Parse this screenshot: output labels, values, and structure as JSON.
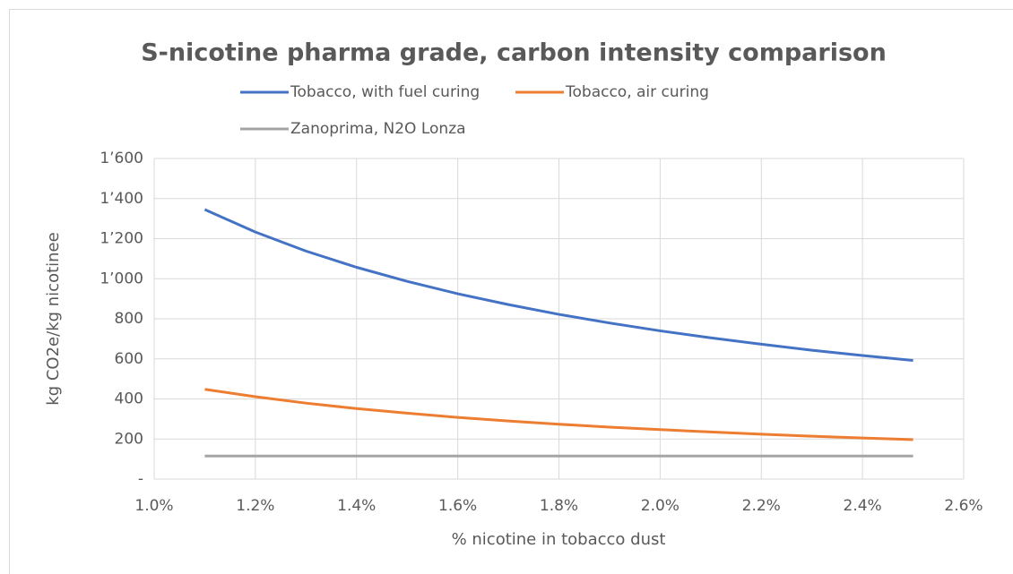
{
  "chart_data": {
    "type": "line",
    "title": "S-nicotine pharma grade, carbon intensity comparison",
    "xlabel": "% nicotine in tobacco dust",
    "ylabel": "kg CO2e/kg nicotinee",
    "x": [
      1.1,
      1.2,
      1.3,
      1.4,
      1.5,
      1.6,
      1.7,
      1.8,
      1.9,
      2.0,
      2.1,
      2.2,
      2.3,
      2.4,
      2.5
    ],
    "series": [
      {
        "name": "Tobacco, with fuel curing",
        "color": "#4472c4",
        "values": [
          1345,
          1233,
          1138,
          1057,
          987,
          925,
          871,
          822,
          779,
          740,
          705,
          673,
          643,
          617,
          592
        ]
      },
      {
        "name": "Tobacco, air curing",
        "color": "#ed7d31",
        "values": [
          448,
          411,
          379,
          352,
          329,
          308,
          290,
          274,
          259,
          247,
          235,
          224,
          214,
          205,
          197
        ]
      },
      {
        "name": "Zanoprima, N2O Lonza",
        "color": "#a5a5a5",
        "values": [
          115,
          115,
          115,
          115,
          115,
          115,
          115,
          115,
          115,
          115,
          115,
          115,
          115,
          115,
          115
        ]
      }
    ],
    "xlim": [
      1.0,
      2.6
    ],
    "xticks": [
      {
        "value": 1.0,
        "label": "1.0%"
      },
      {
        "value": 1.2,
        "label": "1.2%"
      },
      {
        "value": 1.4,
        "label": "1.4%"
      },
      {
        "value": 1.6,
        "label": "1.6%"
      },
      {
        "value": 1.8,
        "label": "1.8%"
      },
      {
        "value": 2.0,
        "label": "2.0%"
      },
      {
        "value": 2.2,
        "label": "2.2%"
      },
      {
        "value": 2.4,
        "label": "2.4%"
      },
      {
        "value": 2.6,
        "label": "2.6%"
      }
    ],
    "ylim": [
      0,
      1600
    ],
    "yticks": [
      {
        "value": 0,
        "label": "-"
      },
      200,
      400,
      600,
      800,
      {
        "value": 1000,
        "label": "1’000"
      },
      {
        "value": 1200,
        "label": "1’200"
      },
      {
        "value": 1400,
        "label": "1’400"
      },
      {
        "value": 1600,
        "label": "1’600"
      }
    ],
    "grid": true
  }
}
